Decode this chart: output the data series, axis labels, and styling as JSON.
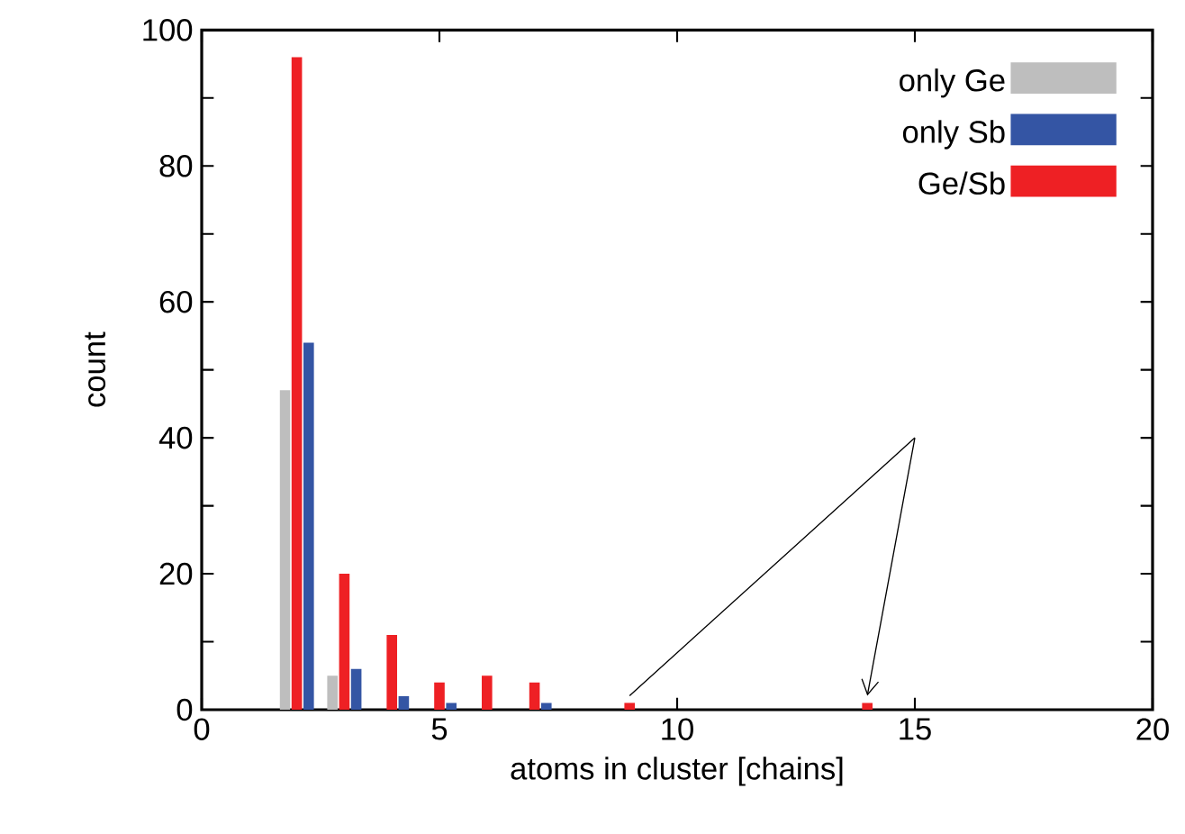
{
  "chart_data": {
    "type": "bar",
    "xlabel": "atoms in cluster [chains]",
    "ylabel": "count",
    "xlim": [
      0,
      20
    ],
    "xticks": [
      0,
      5,
      10,
      15,
      20
    ],
    "ylim": [
      0,
      100
    ],
    "yticks": [
      0,
      {
        "value": 10,
        "label": null
      },
      20,
      {
        "value": 30,
        "label": null
      },
      40,
      {
        "value": 50,
        "label": null
      },
      60,
      {
        "value": 70,
        "label": null
      },
      80,
      {
        "value": 90,
        "label": null
      },
      100
    ],
    "legend": "top right",
    "series": [
      {
        "name": "only Ge",
        "color": "#bebebe",
        "x": [
          2,
          3
        ],
        "values": [
          47,
          5
        ]
      },
      {
        "name": "only Sb",
        "color": "#3455a4",
        "x": [
          2,
          3,
          4,
          5,
          7
        ],
        "values": [
          54,
          6,
          2,
          1,
          1
        ]
      },
      {
        "name": "Ge/Sb",
        "color": "#ee2024",
        "x": [
          2,
          3,
          4,
          5,
          6,
          7,
          9,
          14
        ],
        "values": [
          96,
          20,
          11,
          4,
          5,
          4,
          1,
          1
        ]
      }
    ]
  }
}
